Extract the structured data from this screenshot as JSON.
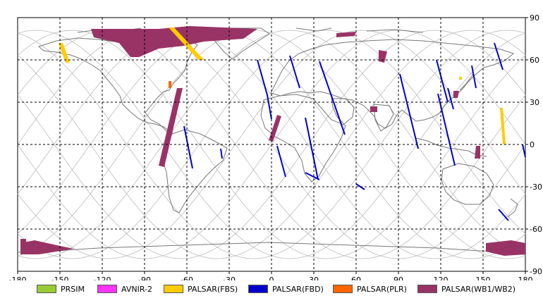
{
  "map": {
    "lon_ticks": [
      "-180",
      "-150",
      "-120",
      "-90",
      "-60",
      "-30",
      "0",
      "30",
      "60",
      "90",
      "120",
      "150",
      "180"
    ],
    "lat_ticks": [
      "90",
      "60",
      "30",
      "0",
      "-30",
      "-60",
      "-90"
    ],
    "lon_range": [
      -180,
      180
    ],
    "lat_range": [
      -90,
      90
    ],
    "grid": "dashed",
    "colors": {
      "PRSIM": "#99cc33",
      "AVNIR-2": "#ff33ff",
      "PALSAR(FBS)": "#ffcc00",
      "PALSAR(FBD)": "#0000cc",
      "PALSAR(PLR)": "#ff6600",
      "PALSAR(WB1/WB2)": "#993366",
      "coastline": "#777777",
      "orbit": "#bbbbbb"
    }
  },
  "legend": [
    {
      "label": "PRSIM",
      "color": "#99cc33"
    },
    {
      "label": "AVNIR-2",
      "color": "#ff33ff"
    },
    {
      "label": "PALSAR(FBS)",
      "color": "#ffcc00"
    },
    {
      "label": "PALSAR(FBD)",
      "color": "#0000cc"
    },
    {
      "label": "PALSAR(PLR)",
      "color": "#ff6600"
    },
    {
      "label": "PALSAR(WB1/WB2)",
      "color": "#993366"
    }
  ],
  "swaths": {
    "wb": [
      {
        "pts": [
          [
            -128,
            82
          ],
          [
            -80,
            82
          ],
          [
            -58,
            84
          ],
          [
            -10,
            82
          ],
          [
            -20,
            75
          ],
          [
            -48,
            73
          ],
          [
            -62,
            70
          ],
          [
            -80,
            68
          ],
          [
            -94,
            62
          ],
          [
            -100,
            62
          ],
          [
            -108,
            72
          ],
          [
            -126,
            76
          ]
        ]
      },
      {
        "pts": [
          [
            -86,
            80
          ],
          [
            -52,
            82
          ],
          [
            -54,
            78
          ],
          [
            -84,
            76
          ]
        ]
      },
      {
        "pts": [
          [
            46,
            79
          ],
          [
            60,
            80
          ],
          [
            59,
            77
          ],
          [
            46,
            76
          ]
        ]
      },
      {
        "pts": [
          [
            76,
            67
          ],
          [
            82,
            66
          ],
          [
            80,
            58
          ],
          [
            76,
            59
          ]
        ]
      },
      {
        "pts": [
          [
            -67,
            40
          ],
          [
            -63,
            40
          ],
          [
            -76,
            -16
          ],
          [
            -80,
            -15
          ]
        ]
      },
      {
        "pts": [
          [
            4,
            21
          ],
          [
            7,
            20
          ],
          [
            1,
            2
          ],
          [
            -2,
            3
          ]
        ]
      },
      {
        "pts": [
          [
            70,
            27
          ],
          [
            75,
            27
          ],
          [
            75,
            23
          ],
          [
            70,
            23
          ]
        ]
      },
      {
        "pts": [
          [
            129,
            38
          ],
          [
            133,
            38
          ],
          [
            132,
            33
          ],
          [
            129,
            33
          ]
        ]
      },
      {
        "pts": [
          [
            145,
            -1
          ],
          [
            148,
            -1
          ],
          [
            148,
            -10
          ],
          [
            144,
            -10
          ]
        ]
      },
      {
        "pts": [
          [
            -178,
            -67
          ],
          [
            -174,
            -67
          ],
          [
            -174,
            -70
          ],
          [
            -178,
            -70
          ]
        ]
      },
      {
        "pts": [
          [
            -178,
            -70
          ],
          [
            -168,
            -68
          ],
          [
            -150,
            -72
          ],
          [
            -140,
            -74
          ],
          [
            -165,
            -78
          ],
          [
            -178,
            -78
          ]
        ]
      },
      {
        "pts": [
          [
            152,
            -70
          ],
          [
            170,
            -68
          ],
          [
            180,
            -70
          ],
          [
            180,
            -78
          ],
          [
            165,
            -79
          ],
          [
            152,
            -76
          ]
        ]
      }
    ],
    "fbs": [
      {
        "pts": [
          [
            -73,
            83
          ],
          [
            -69,
            83
          ],
          [
            -48,
            60
          ],
          [
            -52,
            60
          ]
        ]
      },
      {
        "pts": [
          [
            -151,
            72
          ],
          [
            -148,
            72
          ],
          [
            -143,
            58
          ],
          [
            -146,
            58
          ]
        ]
      },
      {
        "pts": [
          [
            162,
            26
          ],
          [
            164,
            26
          ],
          [
            166,
            0
          ],
          [
            164,
            0
          ]
        ]
      },
      {
        "pts": [
          [
            133,
            48
          ],
          [
            135,
            48
          ],
          [
            135,
            46
          ],
          [
            133,
            46
          ]
        ]
      }
    ],
    "fbd": [
      {
        "pts": [
          [
            -10,
            60
          ],
          [
            -3,
            35
          ],
          [
            0,
            18
          ]
        ]
      },
      {
        "pts": [
          [
            13,
            63
          ],
          [
            20,
            40
          ]
        ]
      },
      {
        "pts": [
          [
            34,
            59
          ],
          [
            52,
            7
          ]
        ]
      },
      {
        "pts": [
          [
            91,
            50
          ],
          [
            104,
            -3
          ]
        ]
      },
      {
        "pts": [
          [
            118,
            36
          ],
          [
            130,
            -15
          ]
        ]
      },
      {
        "pts": [
          [
            125,
            40
          ],
          [
            129,
            25
          ]
        ]
      },
      {
        "pts": [
          [
            117,
            60
          ],
          [
            125,
            30
          ]
        ]
      },
      {
        "pts": [
          [
            142,
            56
          ],
          [
            145,
            40
          ]
        ]
      },
      {
        "pts": [
          [
            158,
            72
          ],
          [
            164,
            53
          ]
        ]
      },
      {
        "pts": [
          [
            -62,
            13
          ],
          [
            -56,
            -17
          ]
        ]
      },
      {
        "pts": [
          [
            -36,
            -3
          ],
          [
            -35,
            -10
          ]
        ]
      },
      {
        "pts": [
          [
            4,
            -1
          ],
          [
            10,
            -23
          ]
        ]
      },
      {
        "pts": [
          [
            24,
            -20
          ],
          [
            34,
            -25
          ]
        ]
      },
      {
        "pts": [
          [
            24,
            19
          ],
          [
            33,
            -25
          ]
        ]
      },
      {
        "pts": [
          [
            178,
            0
          ],
          [
            180,
            -9
          ]
        ]
      },
      {
        "pts": [
          [
            161,
            -46
          ],
          [
            168,
            -54
          ]
        ]
      },
      {
        "pts": [
          [
            60,
            -28
          ],
          [
            66,
            -32
          ]
        ]
      }
    ],
    "plr": [
      {
        "pts": [
          [
            -73,
            45
          ],
          [
            -71,
            45
          ],
          [
            -71,
            40
          ],
          [
            -73,
            40
          ]
        ]
      }
    ]
  }
}
